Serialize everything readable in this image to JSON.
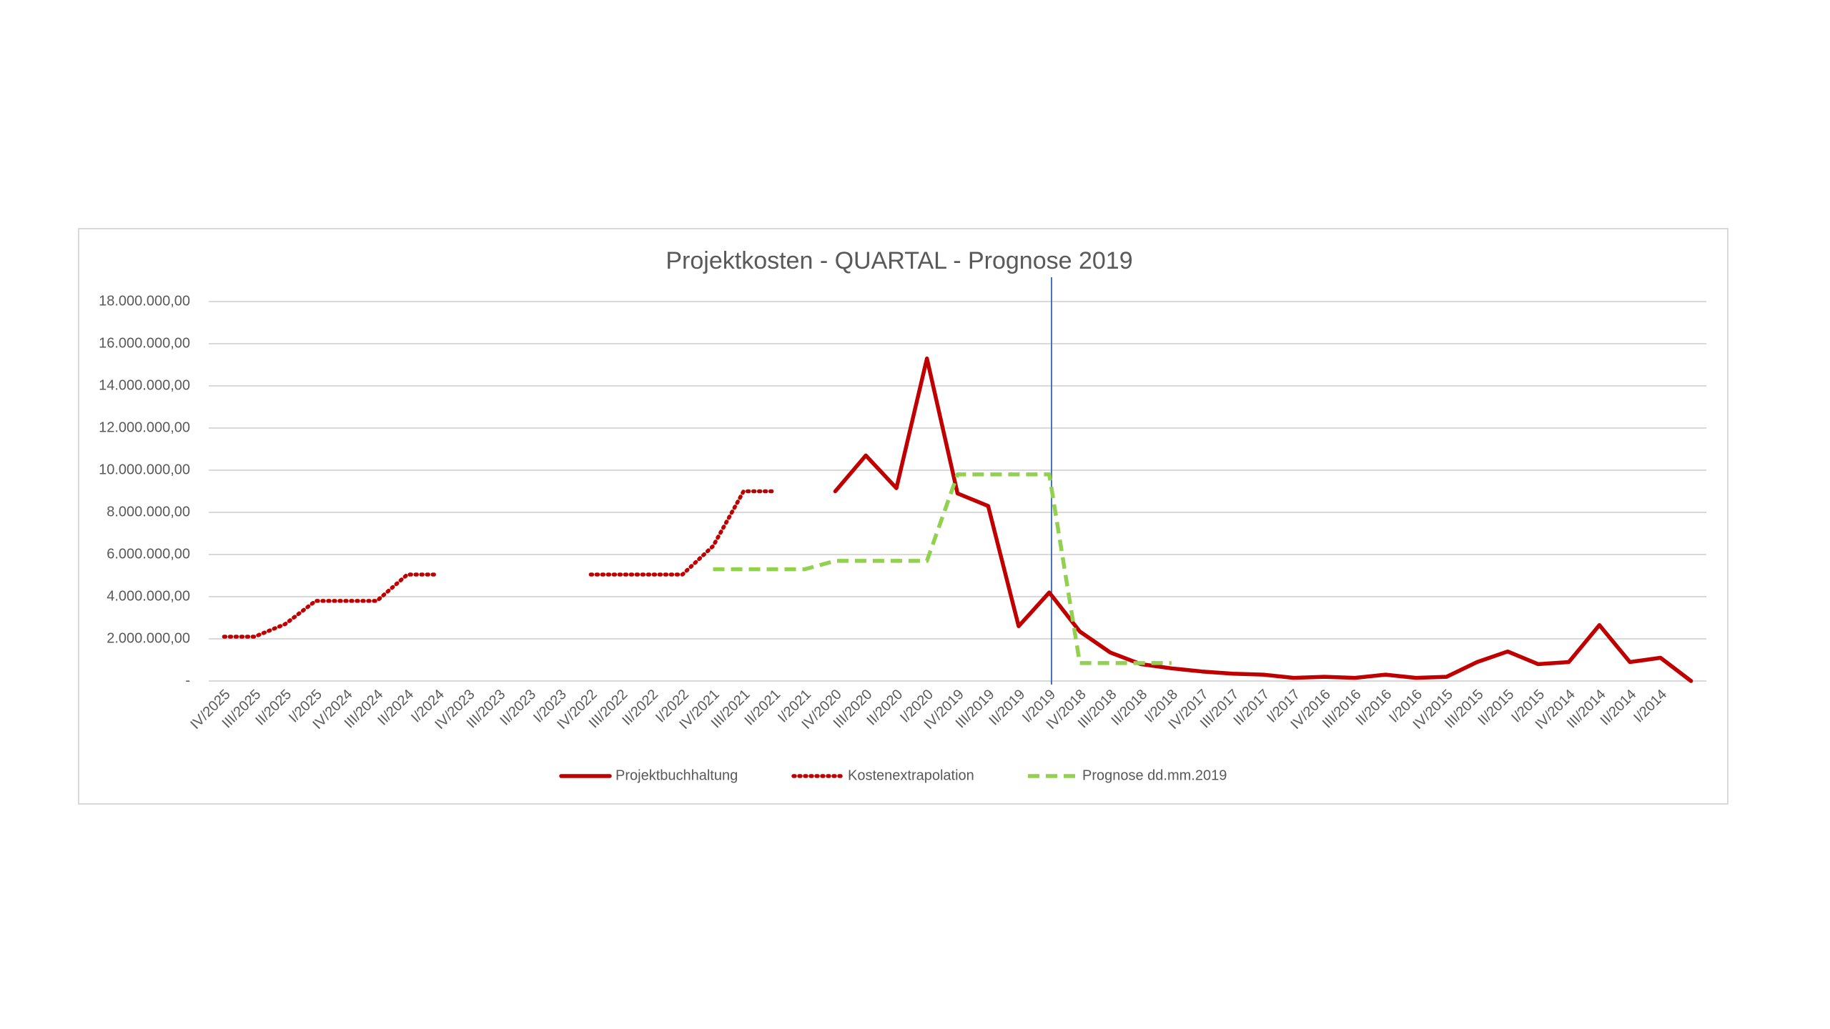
{
  "chart_data": {
    "type": "line",
    "title": "Projektkosten - QUARTAL - Prognose 2019",
    "categories": [
      "IV/2025",
      "III/2025",
      "II/2025",
      "I/2025",
      "IV/2024",
      "III/2024",
      "II/2024",
      "I/2024",
      "IV/2023",
      "III/2023",
      "II/2023",
      "I/2023",
      "IV/2022",
      "III/2022",
      "II/2022",
      "I/2022",
      "IV/2021",
      "III/2021",
      "II/2021",
      "I/2021",
      "IV/2020",
      "III/2020",
      "II/2020",
      "I/2020",
      "IV/2019",
      "III/2019",
      "II/2019",
      "I/2019",
      "IV/2018",
      "III/2018",
      "II/2018",
      "I/2018",
      "IV/2017",
      "III/2017",
      "II/2017",
      "I/2017",
      "IV/2016",
      "III/2016",
      "II/2016",
      "I/2016",
      "IV/2015",
      "III/2015",
      "II/2015",
      "I/2015",
      "IV/2014",
      "III/2014",
      "II/2014",
      "I/2014",
      null
    ],
    "series": [
      {
        "name": "Projektbuchhaltung",
        "color": "#c00000",
        "style": "solid",
        "values": [
          null,
          null,
          null,
          null,
          null,
          null,
          null,
          null,
          null,
          null,
          null,
          null,
          null,
          null,
          null,
          null,
          null,
          null,
          null,
          null,
          9000000,
          10700000,
          9150000,
          15300000,
          8900000,
          8300000,
          2600000,
          4200000,
          2350000,
          1350000,
          800000,
          600000,
          450000,
          350000,
          300000,
          150000,
          200000,
          150000,
          300000,
          150000,
          200000,
          900000,
          1400000,
          800000,
          900000,
          2650000,
          900000,
          1100000,
          0
        ]
      },
      {
        "name": "Kostenextrapolation",
        "color": "#c00000",
        "style": "dotted",
        "values": [
          2100000,
          2100000,
          2700000,
          3800000,
          3800000,
          3800000,
          5050000,
          5050000,
          null,
          null,
          null,
          null,
          5050000,
          5050000,
          5050000,
          5050000,
          6400000,
          9000000,
          9000000,
          null,
          null,
          null,
          null,
          null,
          null,
          null,
          null,
          null,
          null,
          null,
          null,
          null,
          null,
          null,
          null,
          null,
          null,
          null,
          null,
          null,
          null,
          null,
          null,
          null,
          null,
          null,
          null,
          null,
          null
        ]
      },
      {
        "name": "Prognose dd.mm.2019",
        "color": "#92d050",
        "style": "dashed",
        "values": [
          null,
          null,
          null,
          null,
          null,
          null,
          null,
          null,
          null,
          null,
          null,
          null,
          null,
          null,
          null,
          null,
          5300000,
          5300000,
          5300000,
          5300000,
          5700000,
          5700000,
          5700000,
          5700000,
          9800000,
          9800000,
          9800000,
          9800000,
          850000,
          850000,
          850000,
          850000,
          null,
          null,
          null,
          null,
          null,
          null,
          null,
          null,
          null,
          null,
          null,
          null,
          null,
          null,
          null,
          null,
          null
        ]
      }
    ],
    "ylim": [
      0,
      18000000
    ],
    "yticks": [
      {
        "value": 0,
        "label": "-"
      },
      {
        "value": 2000000,
        "label": "2.000.000,00"
      },
      {
        "value": 4000000,
        "label": "4.000.000,00"
      },
      {
        "value": 6000000,
        "label": "6.000.000,00"
      },
      {
        "value": 8000000,
        "label": "8.000.000,00"
      },
      {
        "value": 10000000,
        "label": "10.000.000,00"
      },
      {
        "value": 12000000,
        "label": "12.000.000,00"
      },
      {
        "value": 14000000,
        "label": "14.000.000,00"
      },
      {
        "value": 16000000,
        "label": "16.000.000,00"
      },
      {
        "value": 18000000,
        "label": "18.000.000,00"
      }
    ],
    "grid": true,
    "legend": "bottom"
  }
}
